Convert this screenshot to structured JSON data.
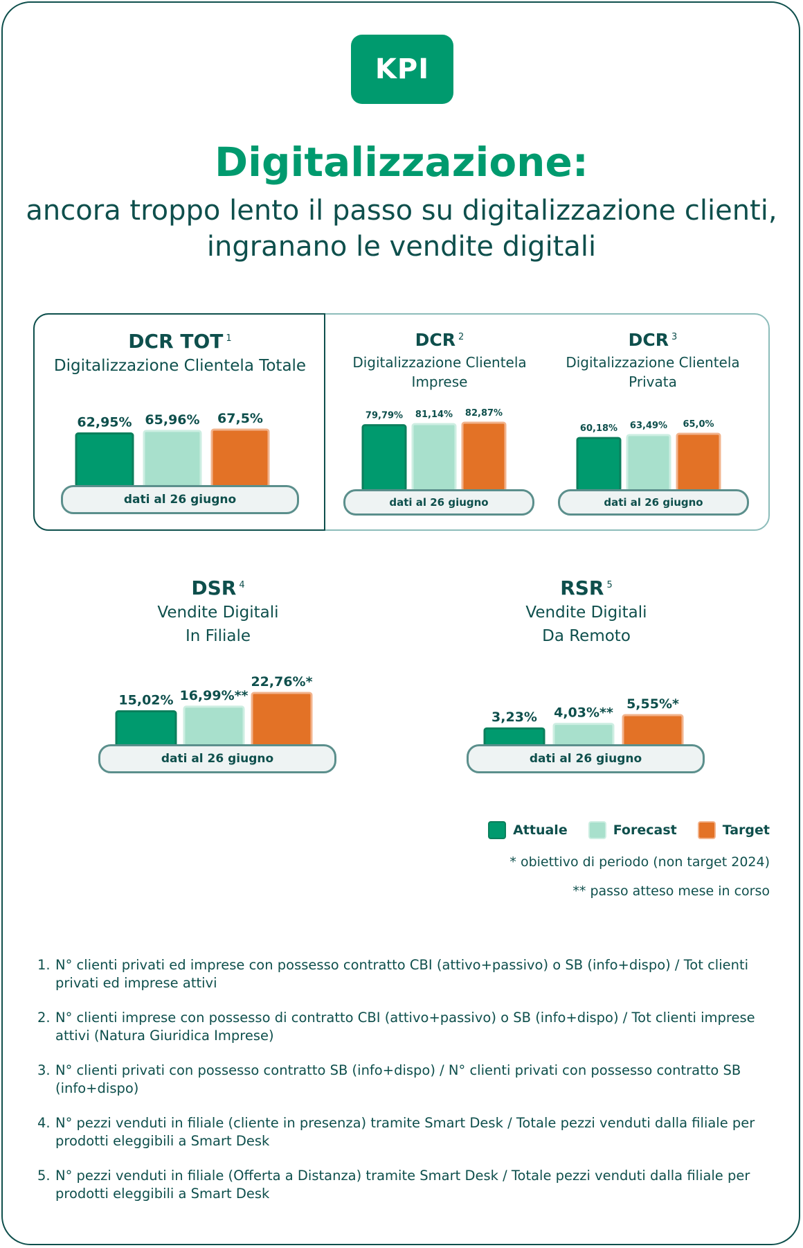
{
  "badge": "KPI",
  "title": {
    "main": "Digitalizzazione:",
    "sub1": "ancora troppo lento il passo su digitalizzazione clienti,",
    "sub2": "ingranano le vendite digitali"
  },
  "colors": {
    "attuale": "#009a6e",
    "forecast": "#a8e0cc",
    "target": "#e37226",
    "dark": "#0e4f4c"
  },
  "pill_label": "dati al 26 giugno",
  "kpis": {
    "dcr_tot": {
      "code": "DCR TOT",
      "sup": "1",
      "desc1": "Digitalizzazione Clientela Totale",
      "desc2": ""
    },
    "dcr_imp": {
      "code": "DCR",
      "sup": "2",
      "desc1": "Digitalizzazione Clientela",
      "desc2": "Imprese"
    },
    "dcr_priv": {
      "code": "DCR",
      "sup": "3",
      "desc1": "Digitalizzazione Clientela",
      "desc2": "Privata"
    },
    "dsr": {
      "code": "DSR",
      "sup": "4",
      "desc1": "Vendite Digitali",
      "desc2": "In Filiale"
    },
    "rsr": {
      "code": "RSR",
      "sup": "5",
      "desc1": "Vendite Digitali",
      "desc2": "Da Remoto"
    }
  },
  "chart_data": [
    {
      "type": "bar",
      "id": "dcr_tot",
      "categories": [
        "Attuale",
        "Forecast",
        "Target"
      ],
      "values": [
        62.95,
        65.96,
        67.5
      ],
      "labels": [
        "62,95%",
        "65,96%",
        "67,5%"
      ]
    },
    {
      "type": "bar",
      "id": "dcr_imp",
      "categories": [
        "Attuale",
        "Forecast",
        "Target"
      ],
      "values": [
        79.79,
        81.14,
        82.87
      ],
      "labels": [
        "79,79%",
        "81,14%",
        "82,87%"
      ]
    },
    {
      "type": "bar",
      "id": "dcr_priv",
      "categories": [
        "Attuale",
        "Forecast",
        "Target"
      ],
      "values": [
        60.18,
        63.49,
        65.0
      ],
      "labels": [
        "60,18%",
        "63,49%",
        "65,0%"
      ]
    },
    {
      "type": "bar",
      "id": "dsr",
      "categories": [
        "Attuale",
        "Forecast",
        "Target"
      ],
      "values": [
        15.02,
        16.99,
        22.76
      ],
      "labels": [
        "15,02%",
        "16,99%**",
        "22,76%*"
      ]
    },
    {
      "type": "bar",
      "id": "rsr",
      "categories": [
        "Attuale",
        "Forecast",
        "Target"
      ],
      "values": [
        3.23,
        4.03,
        5.55
      ],
      "labels": [
        "3,23%",
        "4,03%**",
        "5,55%*"
      ]
    }
  ],
  "legend": [
    "Attuale",
    "Forecast",
    "Target"
  ],
  "notes": {
    "star": "* obiettivo di periodo (non target 2024)",
    "double_star": "** passo atteso mese in corso"
  },
  "footnotes": [
    "N° clienti privati ed imprese con possesso contratto CBI (attivo+passivo) o SB (info+dispo) / Tot clienti privati ed imprese attivi",
    "N° clienti imprese con possesso di contratto CBI (attivo+passivo)  o SB (info+dispo) / Tot clienti imprese attivi (Natura Giuridica Imprese)",
    "N° clienti privati con possesso contratto SB (info+dispo) / N° clienti privati con possesso contratto SB (info+dispo)",
    "N° pezzi venduti in filiale (cliente in presenza) tramite Smart Desk / Totale pezzi venduti dalla filiale per prodotti eleggibili a Smart Desk",
    "N° pezzi venduti in filiale (Offerta a Distanza) tramite Smart Desk / Totale pezzi venduti dalla filiale per prodotti eleggibili a Smart Desk"
  ]
}
